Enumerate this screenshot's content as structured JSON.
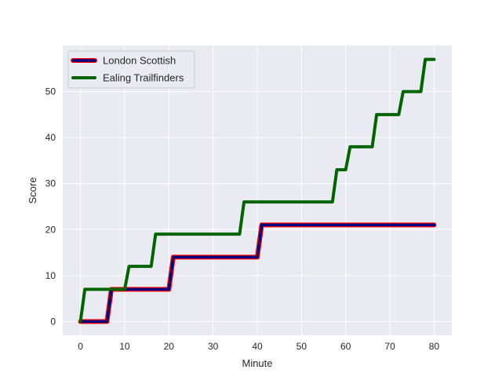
{
  "chart_data": {
    "type": "line",
    "title": "",
    "xlabel": "Minute",
    "ylabel": "Score",
    "xlim": [
      -4,
      84
    ],
    "ylim": [
      -3,
      60
    ],
    "xticks": [
      0,
      10,
      20,
      30,
      40,
      50,
      60,
      70,
      80
    ],
    "yticks": [
      0,
      10,
      20,
      30,
      40,
      50
    ],
    "grid": true,
    "legend_position": "top-left",
    "background": "#eaeaf2",
    "series": [
      {
        "name": "London Scottish",
        "line_color": "#000080",
        "edge_color": "#ff0000",
        "points": [
          [
            0,
            0
          ],
          [
            6,
            0
          ],
          [
            7,
            7
          ],
          [
            20,
            7
          ],
          [
            21,
            14
          ],
          [
            40,
            14
          ],
          [
            41,
            21
          ],
          [
            80,
            21
          ]
        ]
      },
      {
        "name": "Ealing Trailfinders",
        "line_color": "#006400",
        "points": [
          [
            0,
            0
          ],
          [
            1,
            7
          ],
          [
            10,
            7
          ],
          [
            11,
            12
          ],
          [
            16,
            12
          ],
          [
            17,
            19
          ],
          [
            36,
            19
          ],
          [
            37,
            26
          ],
          [
            57,
            26
          ],
          [
            58,
            33
          ],
          [
            60,
            33
          ],
          [
            61,
            38
          ],
          [
            66,
            38
          ],
          [
            67,
            45
          ],
          [
            72,
            45
          ],
          [
            73,
            50
          ],
          [
            77,
            50
          ],
          [
            78,
            57
          ],
          [
            80,
            57
          ]
        ]
      }
    ]
  }
}
